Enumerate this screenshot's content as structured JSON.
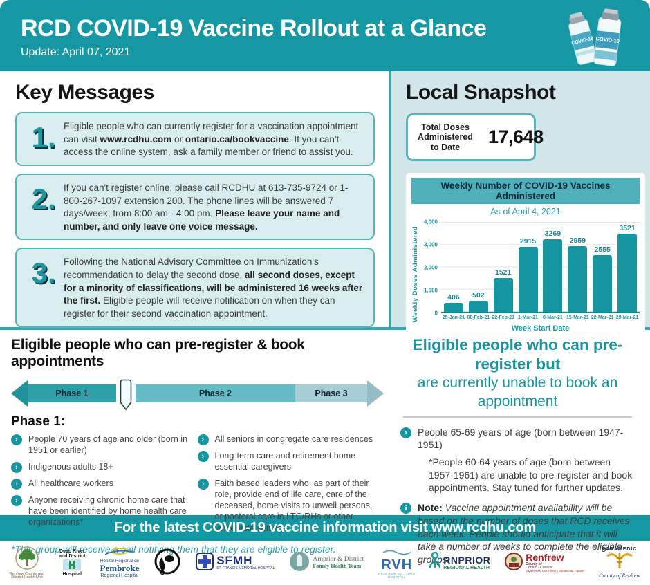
{
  "header": {
    "title": "RCD COVID-19 Vaccine Rollout at a Glance",
    "update": "Update: April 07, 2021",
    "vial_label": "COVID-19"
  },
  "key_messages": {
    "title": "Key Messages",
    "items": [
      {
        "number": "1.",
        "segments": [
          {
            "t": "Eligible people who can currently register for a vaccination appointment can visit ",
            "b": false
          },
          {
            "t": "www.rcdhu.com",
            "b": true
          },
          {
            "t": " or ",
            "b": false
          },
          {
            "t": "ontario.ca/bookvaccine",
            "b": true
          },
          {
            "t": ". If you can't access the online system, ask a family member or friend to assist you.",
            "b": false
          }
        ]
      },
      {
        "number": "2.",
        "segments": [
          {
            "t": "If you can't register online, please call RCDHU at 613-735-9724 or 1-800-267-1097 extension 200. The phone lines will be answered 7 days/week, from 8:00 am - 4:00 pm. ",
            "b": false
          },
          {
            "t": "Please leave your name and number, and only leave one voice message.",
            "b": true
          }
        ]
      },
      {
        "number": "3.",
        "segments": [
          {
            "t": "Following the National Advisory Committee on Immunization's recommendation to delay the second dose, ",
            "b": false
          },
          {
            "t": "all second doses, except for a minority of classifications, will be administered 16 weeks after the first.",
            "b": true
          },
          {
            "t": " Eligible people will receive notification on when they can register for their second vaccination appointment.",
            "b": false
          }
        ]
      }
    ]
  },
  "local_snapshot": {
    "title": "Local Snapshot",
    "total_label_lines": [
      "Total Doses",
      "Administered",
      "to Date"
    ],
    "total_value": "17,648"
  },
  "chart_data": {
    "type": "bar",
    "title": "Weekly Number of COVID-19 Vaccines Administered",
    "subtitle": "As of April 4, 2021",
    "categories": [
      "25-Jan-21",
      "08-Feb-21",
      "22-Feb-21",
      "1-Mar-21",
      "8-Mar-21",
      "15-Mar-21",
      "22-Mar-21",
      "29-Mar-21"
    ],
    "values": [
      406,
      502,
      1521,
      2915,
      3269,
      2959,
      2555,
      3521
    ],
    "xlabel": "Week Start Date",
    "ylabel": "Weekly Doses Administered",
    "ylim": [
      0,
      4000
    ],
    "yticks": [
      "0",
      "1,000",
      "2,000",
      "3,000",
      "4,000"
    ],
    "grid": true,
    "legend": false,
    "bar_color": "#1596a1"
  },
  "phases": {
    "title": "Eligible people who can pre-register & book appointments",
    "labels": [
      "Phase 1",
      "Phase 2",
      "Phase 3"
    ]
  },
  "phase1": {
    "title": "Phase 1:",
    "col1": [
      "People 70 years of age and older (born in 1951 or earlier)",
      "Indigenous adults 18+",
      "All healthcare workers",
      "Anyone receiving chronic home care that have been identified by home health care organizations*"
    ],
    "col2": [
      "All seniors in congregate care residences",
      "Long-term care and retirement home essential caregivers",
      "Faith based leaders who, as part of their role, provide end of life care, care of the deceased, home visits to unwell persons, or pastoral care in LTC/RHs or other vulnerable settings"
    ],
    "footnote": "*This group will receive a call notifying them that they are eligible to register."
  },
  "preregister_only": {
    "title_line1": "Eligible people who can pre-register but",
    "title_line2": "are currently unable to book an appointment",
    "item": "People 65-69 years of age (born between 1947-1951)",
    "item_sub": "*People 60-64 years of age (born between 1957-1961) are unable to pre-register and book appointments. Stay tuned for further updates.",
    "note_label": "Note:",
    "note_text": "Vaccine appointment availability will be based on the number of doses that RCD receives each week. People should anticipate that it will take a number of weeks to complete the eligible groups."
  },
  "footer": {
    "text": "For the latest COVID-19 vaccine information visit www.rcdhu.com"
  },
  "logos": [
    {
      "id": "rcdhu",
      "lines": [
        "Renfrew County and",
        "District Health Unit"
      ]
    },
    {
      "id": "deep-river",
      "lines": [
        "Deep River",
        "and District",
        "Hospital"
      ]
    },
    {
      "id": "pembroke",
      "lines": [
        "Hôpital Régional de",
        "Pembroke",
        "Regional Hospital"
      ]
    },
    {
      "id": "algonquins",
      "lines": []
    },
    {
      "id": "sfmh",
      "lines": [
        "SFMH",
        "ST. FRANCIS MEMORIAL HOSPITAL"
      ]
    },
    {
      "id": "arnprior-fht",
      "lines": [
        "Arnprior & District",
        "Family Health Team"
      ]
    },
    {
      "id": "rvh",
      "lines": [
        "RVH",
        "RENFREW VICTORIA",
        "HOSPITAL"
      ]
    },
    {
      "id": "arnprior-regional",
      "lines": [
        "RNPRIOR",
        "REGIONAL HEALTH"
      ]
    },
    {
      "id": "renfrew-county",
      "lines": [
        "Renfrew",
        "County of",
        "Ontario · Canada",
        "Experience Our History, Share Our Future!"
      ]
    },
    {
      "id": "paramedic",
      "lines": [
        "PARAMEDIC",
        "County of Renfrew"
      ]
    }
  ],
  "colors": {
    "teal": "#1598a3",
    "panel": "#d2e5e9",
    "box_fill": "#d9edef",
    "box_border": "#56b4bc",
    "bar": "#1596a1",
    "heading_teal": "#1b93a1"
  }
}
